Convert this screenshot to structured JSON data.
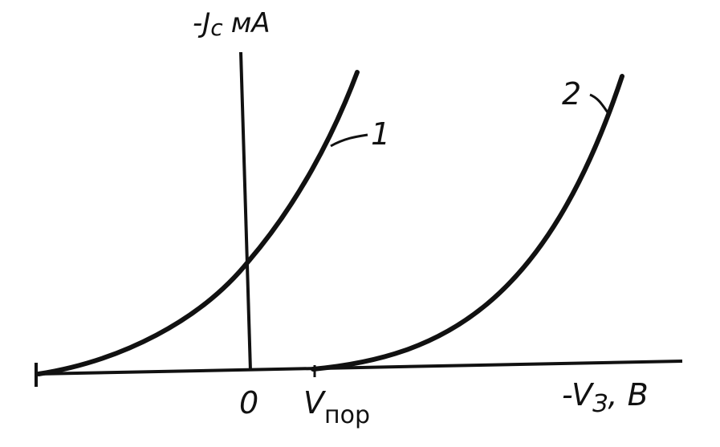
{
  "y_axis": {
    "label": "-J",
    "subscript": "c",
    "unit": "мА"
  },
  "x_axis": {
    "label": "-V",
    "subscript": "З",
    "unit": ", В"
  },
  "origin": "0",
  "threshold": {
    "label": "V",
    "subscript": "пор"
  },
  "curves": [
    {
      "label": "1"
    },
    {
      "label": "2"
    }
  ]
}
